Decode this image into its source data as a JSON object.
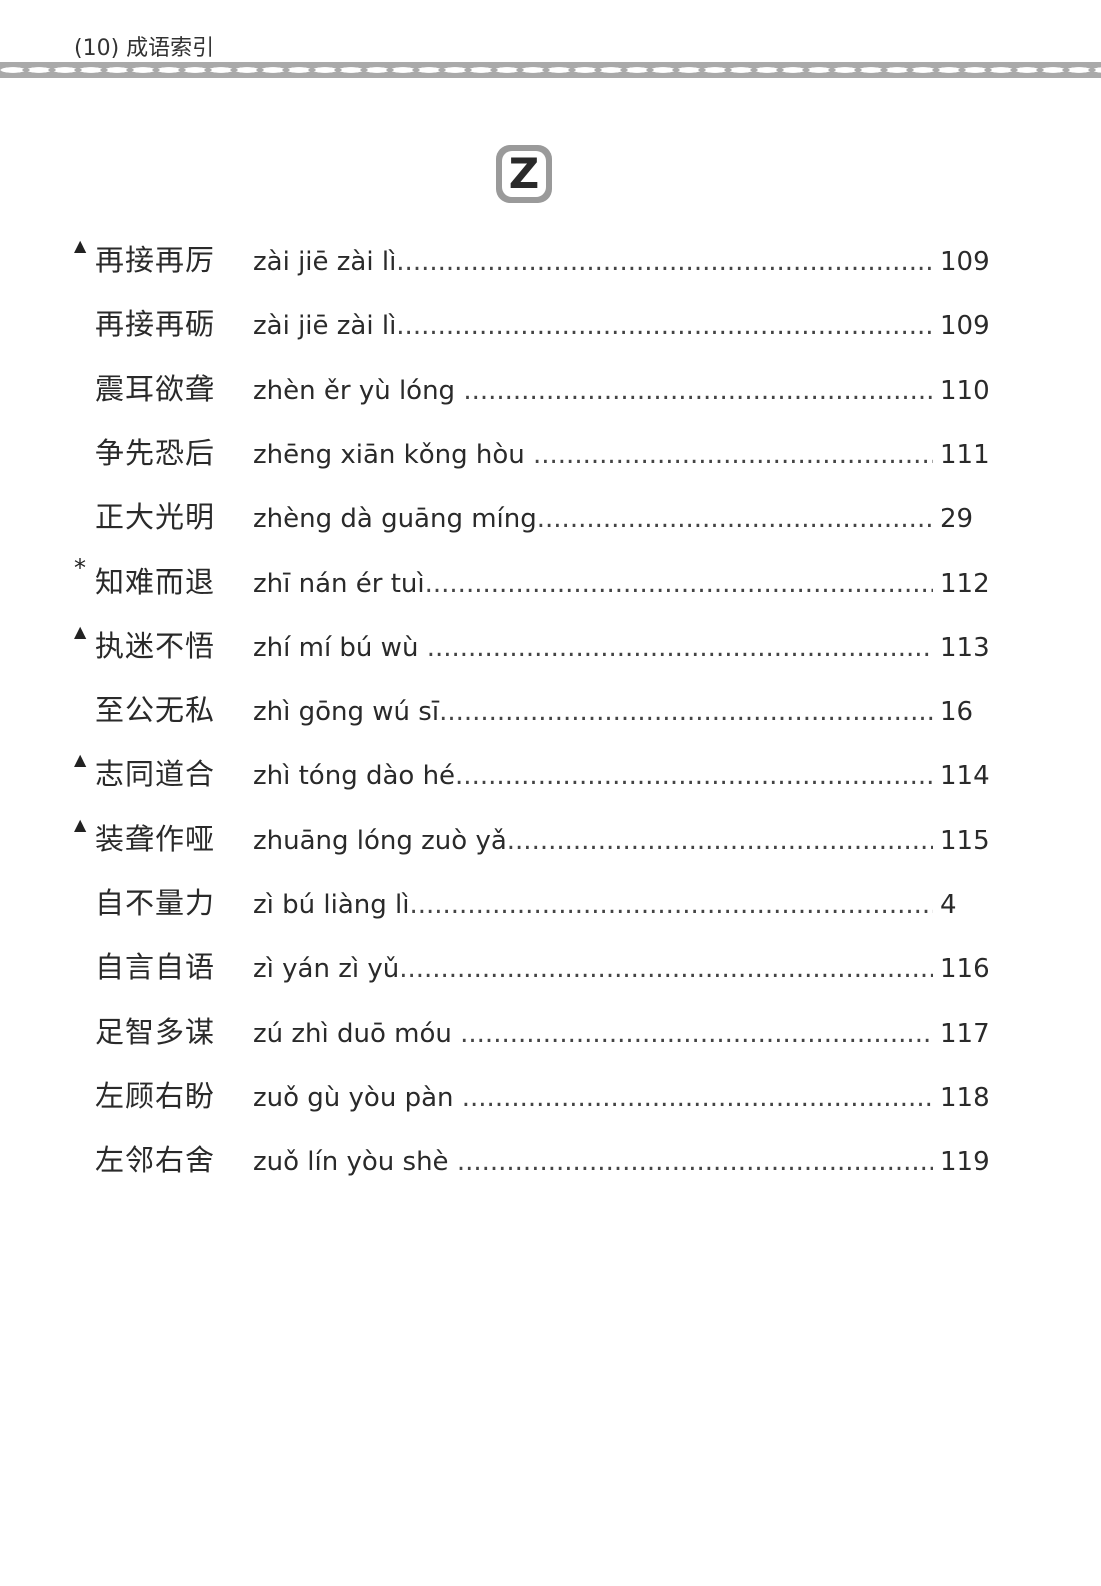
{
  "header": {
    "title": "(10) 成语索引"
  },
  "section_letter": "Z",
  "entries": [
    {
      "marker": "▲",
      "idiom": "再接再厉",
      "pinyin": "zài jiē zài lì",
      "page": "109"
    },
    {
      "marker": "",
      "idiom": "再接再砺",
      "pinyin": "zài jiē zài lì",
      "page": "109"
    },
    {
      "marker": "",
      "idiom": "震耳欲聋",
      "pinyin": "zhèn ěr yù lóng ",
      "page": "110"
    },
    {
      "marker": "",
      "idiom": "争先恐后",
      "pinyin": "zhēng xiān kǒng hòu ",
      "page": "111"
    },
    {
      "marker": "",
      "idiom": "正大光明",
      "pinyin": "zhèng dà guāng míng",
      "page": "29"
    },
    {
      "marker": "*",
      "idiom": "知难而退",
      "pinyin": "zhī nán ér tuì",
      "page": "112"
    },
    {
      "marker": "▲",
      "idiom": "执迷不悟",
      "pinyin": "zhí mí bú wù ",
      "page": "113"
    },
    {
      "marker": "",
      "idiom": "至公无私",
      "pinyin": "zhì gōng wú sī",
      "page": "16"
    },
    {
      "marker": "▲",
      "idiom": "志同道合",
      "pinyin": "zhì tóng dào hé",
      "page": "114"
    },
    {
      "marker": "▲",
      "idiom": "装聋作哑",
      "pinyin": "zhuāng lóng zuò yǎ",
      "page": "115"
    },
    {
      "marker": "",
      "idiom": "自不量力",
      "pinyin": "zì bú liàng lì",
      "page": "4"
    },
    {
      "marker": "",
      "idiom": "自言自语",
      "pinyin": "zì yán zì yǔ",
      "page": "116"
    },
    {
      "marker": "",
      "idiom": "足智多谋",
      "pinyin": "zú zhì duō móu ",
      "page": "117"
    },
    {
      "marker": "",
      "idiom": "左顾右盼",
      "pinyin": "zuǒ gù yòu pàn ",
      "page": "118"
    },
    {
      "marker": "",
      "idiom": "左邻右舍",
      "pinyin": "zuǒ lín yòu shè ",
      "page": "119"
    }
  ]
}
